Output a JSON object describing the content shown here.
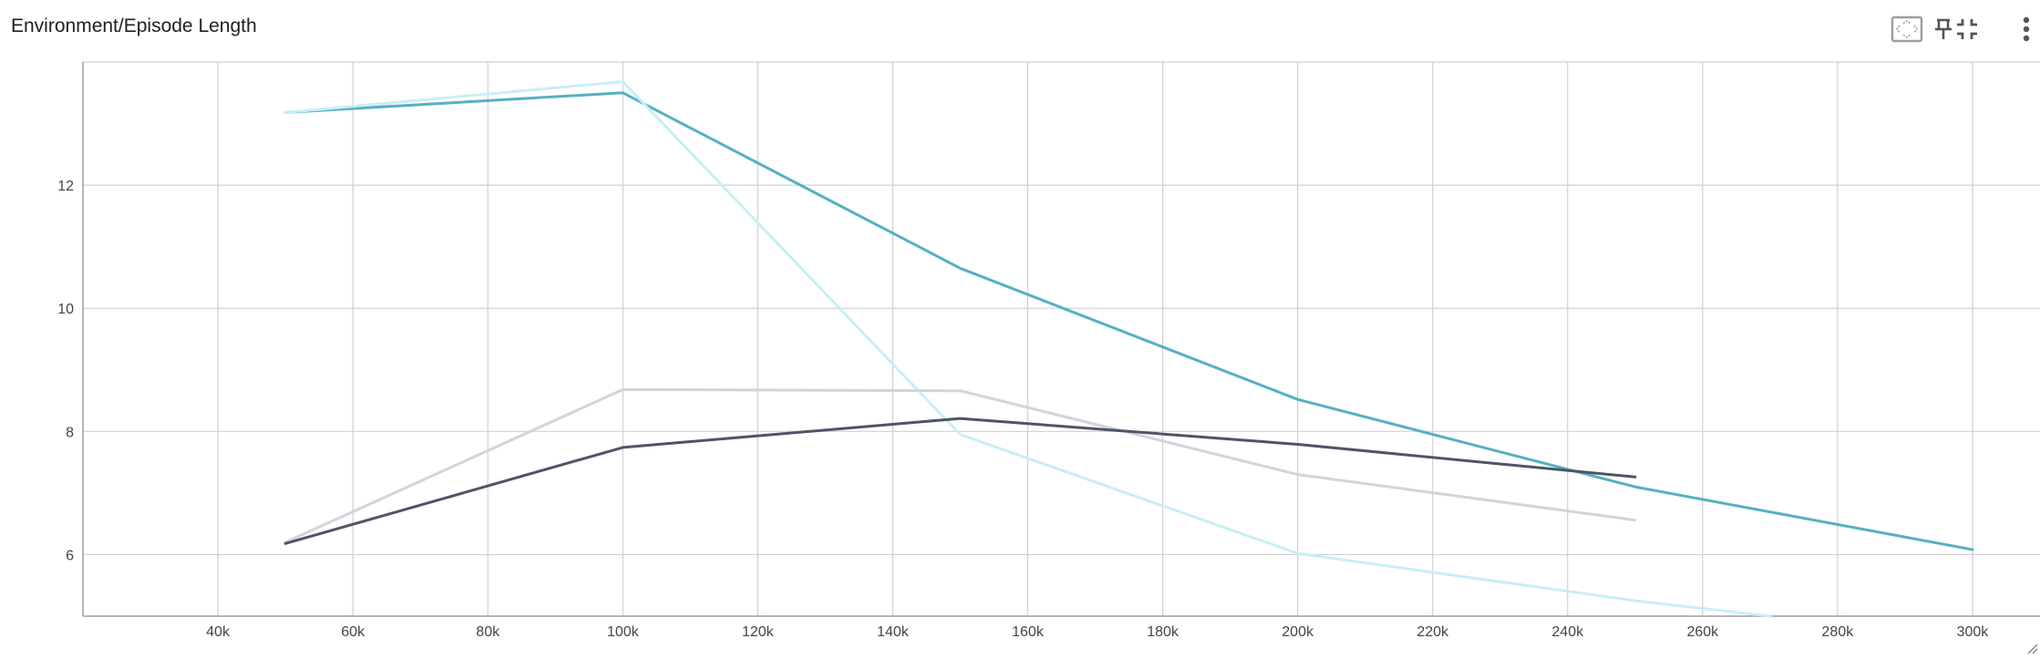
{
  "card": {
    "title": "Environment/Episode Length"
  },
  "toolbar": {
    "icons": [
      "fit-domain-icon",
      "pin-icon",
      "collapse-icon",
      "more-vert-icon"
    ]
  },
  "colors": {
    "grid": "#d0d0d0",
    "axis": "#9e9e9e",
    "series": [
      "#56b0c2",
      "#c9eef5",
      "#d3d3de",
      "#4d5566"
    ]
  },
  "chart_data": {
    "type": "line",
    "title": "Environment/Episode Length",
    "xlabel": "",
    "ylabel": "",
    "xlim": [
      20000,
      310000
    ],
    "ylim": [
      5,
      14
    ],
    "x_ticks": [
      40000,
      60000,
      80000,
      100000,
      120000,
      140000,
      160000,
      180000,
      200000,
      220000,
      240000,
      260000,
      280000,
      300000
    ],
    "x_tick_labels": [
      "40k",
      "60k",
      "80k",
      "100k",
      "120k",
      "140k",
      "160k",
      "180k",
      "200k",
      "220k",
      "240k",
      "260k",
      "280k",
      "300k"
    ],
    "y_ticks": [
      6,
      8,
      10,
      12
    ],
    "y_tick_labels": [
      "6",
      "8",
      "10",
      "12"
    ],
    "grid": true,
    "legend": "none",
    "series": [
      {
        "color": "#56b0c2",
        "x": [
          50000,
          100000,
          150000,
          200000,
          250000,
          300000
        ],
        "y": [
          13.18,
          13.5,
          10.65,
          8.52,
          7.1,
          6.08
        ]
      },
      {
        "color": "#c9eef5",
        "x": [
          50000,
          100000,
          150000,
          200000,
          250000,
          270000
        ],
        "y": [
          13.18,
          13.68,
          7.95,
          6.02,
          5.25,
          5.0
        ]
      },
      {
        "color": "#d3d3de",
        "x": [
          50000,
          100000,
          150000,
          200000,
          250000
        ],
        "y": [
          6.2,
          8.68,
          8.66,
          7.3,
          6.56
        ]
      },
      {
        "color": "#4d5566",
        "x": [
          50000,
          100000,
          150000,
          200000,
          250000
        ],
        "y": [
          6.18,
          7.74,
          8.21,
          7.79,
          7.26
        ]
      }
    ]
  }
}
